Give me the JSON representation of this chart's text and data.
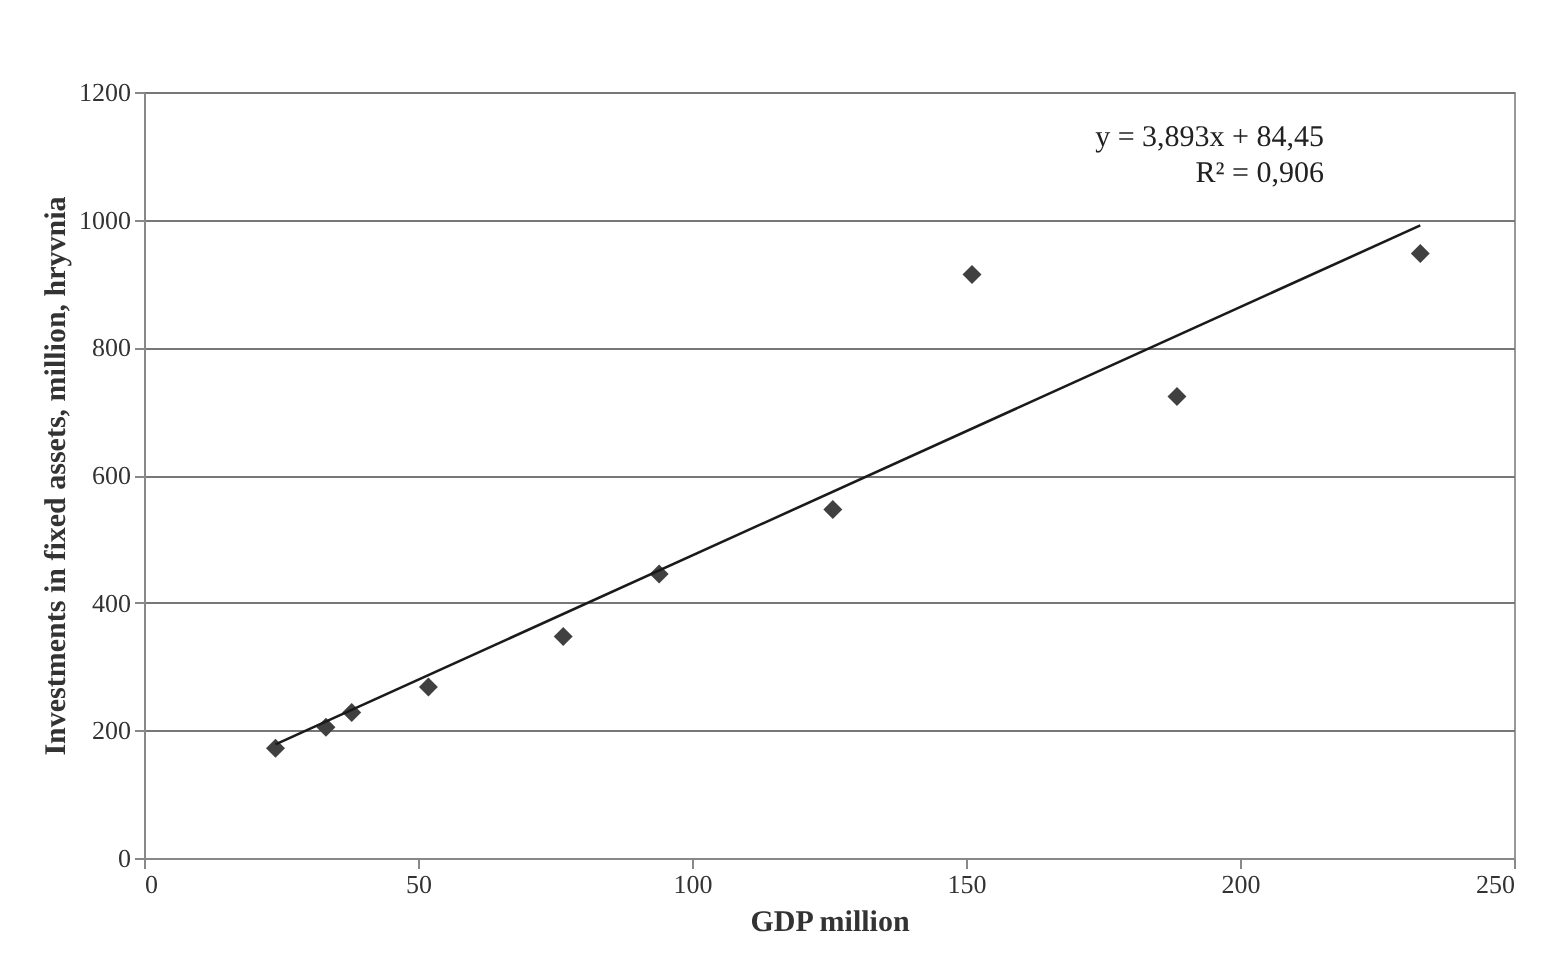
{
  "chart_data": {
    "type": "scatter",
    "xlabel": "GDP million",
    "ylabel": "Investments in fixed assets, million, hryvnia",
    "xlim": [
      0,
      250
    ],
    "xticks": [
      0,
      50,
      100,
      150,
      200,
      250
    ],
    "ylim": [
      0,
      1200
    ],
    "yticks": [
      0,
      200,
      400,
      600,
      800,
      1000,
      1200
    ],
    "grid": "y",
    "series": [
      {
        "color": "#404040",
        "marker": "diamond",
        "x": [
          24.0,
          33.2,
          37.9,
          51.9,
          76.5,
          94.0,
          125.7,
          151.1,
          188.5,
          232.9
        ],
        "values": [
          172,
          205,
          228,
          268,
          347,
          445,
          546,
          914,
          723,
          947
        ]
      },
      {
        "type": "line",
        "marker": "none",
        "line_style": "solid",
        "color": "#1a1a1a",
        "x": [
          24.0,
          232.9
        ],
        "values": [
          178,
          991
        ]
      }
    ],
    "annotations": [
      "y = 3,893x + 84,45",
      "R² = 0,906"
    ]
  }
}
